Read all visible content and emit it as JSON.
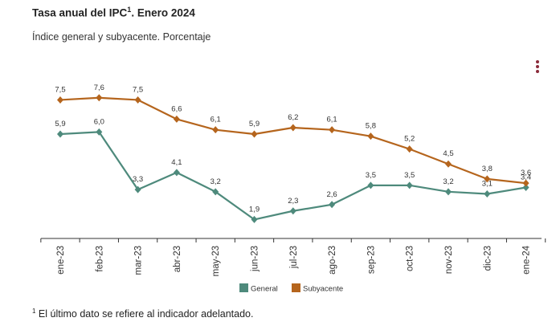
{
  "header": {
    "title": "Tasa anual del IPC",
    "title_sup": "1",
    "title_suffix": ". Enero 2024",
    "subtitle": "Índice general y subyacente. Porcentaje"
  },
  "menu_icon": "more-vertical-icon",
  "footnote": {
    "sup": "1",
    "text": " El último dato se refiere al indicador adelantado."
  },
  "colors": {
    "general": "#4e8a7c",
    "subyacente": "#b5651d",
    "menu": "#8b2b3b"
  },
  "chart_data": {
    "type": "line",
    "title": "Tasa anual del IPC. Enero 2024",
    "categories": [
      "ene-23",
      "feb-23",
      "mar-23",
      "abr-23",
      "may-23",
      "jun-23",
      "jul-23",
      "ago-23",
      "sep-23",
      "oct-23",
      "nov-23",
      "dic-23",
      "ene-24"
    ],
    "series": [
      {
        "name": "General",
        "color": "#4e8a7c",
        "values": [
          5.9,
          6.0,
          3.3,
          4.1,
          3.2,
          1.9,
          2.3,
          2.6,
          3.5,
          3.5,
          3.2,
          3.1,
          3.4
        ]
      },
      {
        "name": "Subyacente",
        "color": "#b5651d",
        "values": [
          7.5,
          7.6,
          7.5,
          6.6,
          6.1,
          5.9,
          6.2,
          6.1,
          5.8,
          5.2,
          4.5,
          3.8,
          3.6
        ]
      }
    ],
    "legend_position": "bottom-center",
    "grid": false,
    "decimal_separator": ","
  }
}
